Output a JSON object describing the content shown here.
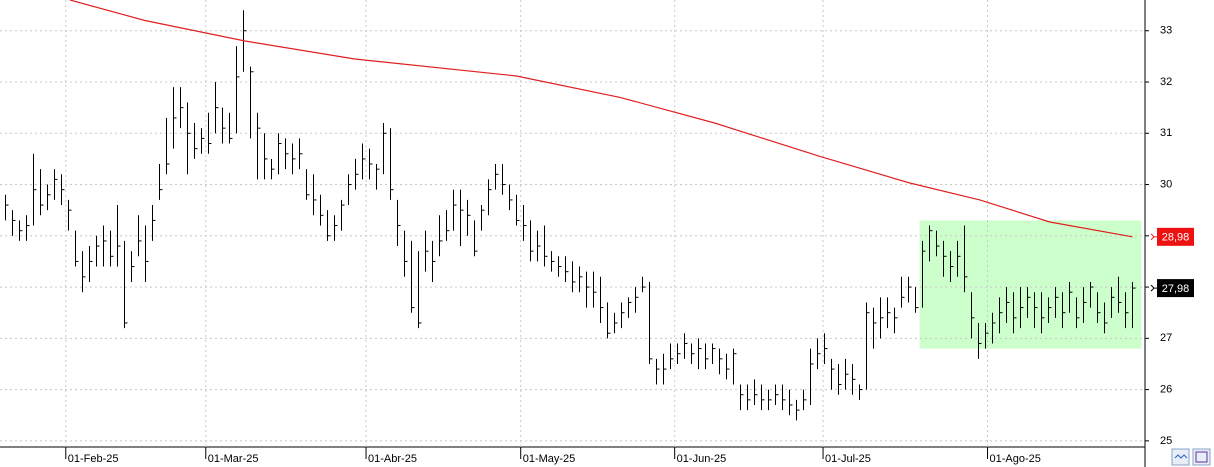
{
  "chart_data": {
    "type": "ohlc",
    "high": [
      29.8,
      29.5,
      29.3,
      29.4,
      30.6,
      30.3,
      30.0,
      30.3,
      30.2,
      29.7,
      29.1,
      28.7,
      28.8,
      29.0,
      29.2,
      29.1,
      29.6,
      28.9,
      28.7,
      29.4,
      29.2,
      29.6,
      30.4,
      31.3,
      31.9,
      31.9,
      31.6,
      31.2,
      31.1,
      31.4,
      32.0,
      31.5,
      31.4,
      32.7,
      33.4,
      32.3,
      31.4,
      31.0,
      30.5,
      31.0,
      30.9,
      30.8,
      30.9,
      30.3,
      30.2,
      29.8,
      29.5,
      29.4,
      29.7,
      30.2,
      30.5,
      30.8,
      30.7,
      30.4,
      31.2,
      31.1,
      29.7,
      29.1,
      28.9,
      28.7,
      29.1,
      28.9,
      29.4,
      29.5,
      29.9,
      29.9,
      29.7,
      29.3,
      29.6,
      30.1,
      30.4,
      30.4,
      30.0,
      29.8,
      29.6,
      29.3,
      29.1,
      29.2,
      28.7,
      28.6,
      28.6,
      28.5,
      28.4,
      28.3,
      28.3,
      28.2,
      27.7,
      27.5,
      27.7,
      27.8,
      28.0,
      28.2,
      28.1,
      26.6,
      26.7,
      26.9,
      26.9,
      27.1,
      26.9,
      27.0,
      26.9,
      26.9,
      26.8,
      26.7,
      26.8,
      26.1,
      26.1,
      26.2,
      26.1,
      26.0,
      26.1,
      26.1,
      26.0,
      25.8,
      26.0,
      26.8,
      27.0,
      27.1,
      26.6,
      26.5,
      26.6,
      26.5,
      26.1,
      27.7,
      27.6,
      27.8,
      27.8,
      27.6,
      28.2,
      28.2,
      28.0,
      28.9,
      29.2,
      29.1,
      28.9,
      28.7,
      28.9,
      29.2,
      27.9,
      27.3,
      27.3,
      27.5,
      27.8,
      28.0,
      27.9,
      28.0,
      28.0,
      27.9,
      27.9,
      27.8,
      28.0,
      27.9,
      28.1,
      27.8,
      28.0,
      28.1,
      27.9,
      27.7,
      28.0,
      28.2,
      27.9,
      28.1
    ],
    "low": [
      29.3,
      29.0,
      28.9,
      28.9,
      29.2,
      29.4,
      29.5,
      29.7,
      29.6,
      29.1,
      28.4,
      27.9,
      28.1,
      28.4,
      28.4,
      28.4,
      28.4,
      27.2,
      28.1,
      28.6,
      28.1,
      28.9,
      29.7,
      30.2,
      30.7,
      31.1,
      30.2,
      30.5,
      30.6,
      30.6,
      31.0,
      30.8,
      30.8,
      31.0,
      32.2,
      30.9,
      30.1,
      30.1,
      30.1,
      30.2,
      30.3,
      30.2,
      30.3,
      29.7,
      29.4,
      29.2,
      28.9,
      28.9,
      29.1,
      29.6,
      29.9,
      30.1,
      30.1,
      29.9,
      30.2,
      29.7,
      28.8,
      28.2,
      27.5,
      27.2,
      28.3,
      28.1,
      28.6,
      28.9,
      29.1,
      28.8,
      29.0,
      28.6,
      29.1,
      29.4,
      29.9,
      29.8,
      29.5,
      29.2,
      28.9,
      28.5,
      28.5,
      28.4,
      28.3,
      28.2,
      28.1,
      27.9,
      27.9,
      27.6,
      27.6,
      27.3,
      27.0,
      27.1,
      27.2,
      27.4,
      27.5,
      27.9,
      26.5,
      26.1,
      26.1,
      26.4,
      26.5,
      26.6,
      26.5,
      26.4,
      26.4,
      26.5,
      26.3,
      26.2,
      26.1,
      25.6,
      25.6,
      25.7,
      25.6,
      25.6,
      25.7,
      25.6,
      25.5,
      25.4,
      25.6,
      25.7,
      26.4,
      26.5,
      26.0,
      25.9,
      26.0,
      25.9,
      25.8,
      26.0,
      26.8,
      27.0,
      27.2,
      27.1,
      27.6,
      27.7,
      27.5,
      27.6,
      28.5,
      28.6,
      28.2,
      28.1,
      28.2,
      27.9,
      27.0,
      26.6,
      26.8,
      26.9,
      27.1,
      27.3,
      27.1,
      27.2,
      27.4,
      27.2,
      27.1,
      27.3,
      27.4,
      27.2,
      27.5,
      27.2,
      27.3,
      27.6,
      27.3,
      27.1,
      27.4,
      27.5,
      27.2,
      27.2
    ],
    "close": [
      29.6,
      29.3,
      29.1,
      29.2,
      29.9,
      29.6,
      29.8,
      30.1,
      29.9,
      29.5,
      28.5,
      28.2,
      28.5,
      28.8,
      28.9,
      28.6,
      28.8,
      27.3,
      28.4,
      28.9,
      28.5,
      29.3,
      29.9,
      30.4,
      31.3,
      31.5,
      31.0,
      30.7,
      30.9,
      30.8,
      31.5,
      31.1,
      30.9,
      32.1,
      33.0,
      32.2,
      31.1,
      30.5,
      30.3,
      30.8,
      30.6,
      30.5,
      30.6,
      29.8,
      29.7,
      29.4,
      29.0,
      29.2,
      29.6,
      30.0,
      30.2,
      30.5,
      30.4,
      30.3,
      31.0,
      29.9,
      29.2,
      28.5,
      27.6,
      27.3,
      28.7,
      28.5,
      28.9,
      29.1,
      29.6,
      29.5,
      29.4,
      28.7,
      29.5,
      29.9,
      30.2,
      30.0,
      29.7,
      29.3,
      29.2,
      28.7,
      28.8,
      28.6,
      28.5,
      28.4,
      28.3,
      28.1,
      28.2,
      28.0,
      27.9,
      27.6,
      27.1,
      27.3,
      27.5,
      27.7,
      27.8,
      28.0,
      26.6,
      26.4,
      26.4,
      26.6,
      26.7,
      26.9,
      26.7,
      26.8,
      26.6,
      26.8,
      26.6,
      26.4,
      26.7,
      25.9,
      25.8,
      25.9,
      25.8,
      25.8,
      25.9,
      25.8,
      25.7,
      25.6,
      25.8,
      26.5,
      26.7,
      26.8,
      26.4,
      26.1,
      26.3,
      26.2,
      26.0,
      27.5,
      27.3,
      27.4,
      27.5,
      27.4,
      27.8,
      28.0,
      27.6,
      28.7,
      29.1,
      28.8,
      28.6,
      28.4,
      28.6,
      28.2,
      27.4,
      26.9,
      27.1,
      27.3,
      27.5,
      27.7,
      27.4,
      27.6,
      27.8,
      27.6,
      27.4,
      27.6,
      27.8,
      27.5,
      27.9,
      27.4,
      27.7,
      28.0,
      27.5,
      27.3,
      27.8,
      27.7,
      27.5,
      27.98
    ],
    "bar_color": "#000000",
    "ma": {
      "x": [
        9.3,
        20,
        34.3,
        50,
        73,
        87.9,
        101.4,
        116.4,
        129.3,
        139.3,
        149.3,
        161.1
      ],
      "values": [
        33.6,
        33.2,
        32.8,
        32.45,
        32.12,
        31.7,
        31.2,
        30.55,
        30.03,
        29.7,
        29.27,
        28.98
      ],
      "color": "#e02020"
    },
    "zone": {
      "x": [
        130.7,
        162.4
      ],
      "y": [
        26.8,
        29.3
      ],
      "color": "#ccffcc"
    },
    "last_labels": [
      {
        "value": 28.98,
        "label": "28,98",
        "color": "#ee1111"
      },
      {
        "value": 27.98,
        "label": "27,98",
        "color": "#000000"
      }
    ],
    "xlim": [
      -0.7,
      162.9
    ],
    "ylim": [
      24.88,
      33.6
    ],
    "xticks": [
      {
        "value": 8.7,
        "label": "01-Feb-25"
      },
      {
        "value": 28.7,
        "label": "01-Mar-25"
      },
      {
        "value": 51.6,
        "label": "01-Abr-25"
      },
      {
        "value": 73.7,
        "label": "01-May-25"
      },
      {
        "value": 95.7,
        "label": "01-Jun-25"
      },
      {
        "value": 116.9,
        "label": "01-Jul-25"
      },
      {
        "value": 140.4,
        "label": "01-Ago-25"
      }
    ],
    "yticks": [
      25,
      26,
      27,
      28,
      29,
      30,
      31,
      32,
      33
    ],
    "grid": true
  }
}
